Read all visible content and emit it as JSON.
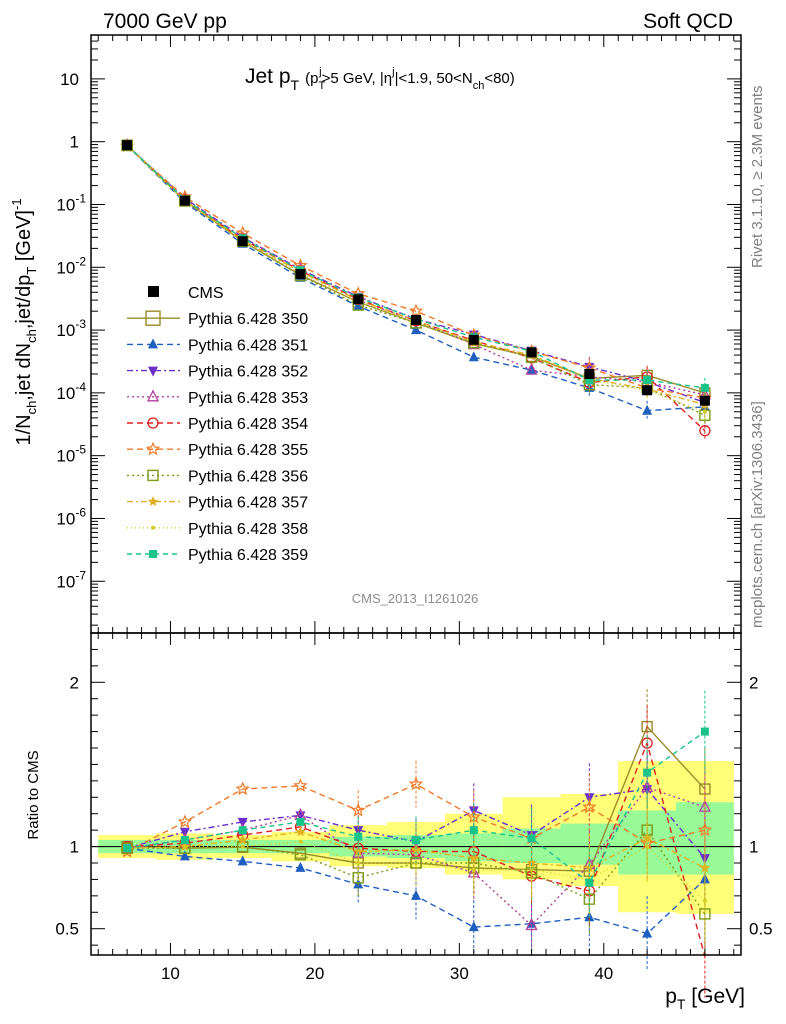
{
  "header": {
    "left": "7000 GeV pp",
    "right": "Soft QCD"
  },
  "side": {
    "rivet": "Rivet 3.1.10, ≥ 2.3M events",
    "mcplots": "mcplots.cern.ch [arXiv:1306.3436]"
  },
  "title": {
    "main": "Jet p",
    "main_sub": "T",
    "sel_a": "(p",
    "sel_a_sub": "T",
    "sel_a_sup": "j",
    "sel_b": ">5 GeV, |η",
    "sel_b_sup": "j",
    "sel_c": "|<1.9, 50<N",
    "sel_c_sub": "ch",
    "sel_d": "<80)"
  },
  "analysis_id": "CMS_2013_I1261026",
  "colors": {
    "data": "#000000",
    "band_inner": "#98fb98",
    "band_outer": "#ffff78"
  },
  "legend": {
    "data_label": "CMS",
    "mc": [
      "Pythia 6.428 350",
      "Pythia 6.428 351",
      "Pythia 6.428 352",
      "Pythia 6.428 353",
      "Pythia 6.428 354",
      "Pythia 6.428 355",
      "Pythia 6.428 356",
      "Pythia 6.428 357",
      "Pythia 6.428 358",
      "Pythia 6.428 359"
    ]
  },
  "chart_data": [
    {
      "type": "scatter",
      "panel": "main",
      "yscale": "log",
      "ylabel": "1/N_ch,jet dN_ch,jet/dp_T [GeV]^-1",
      "xlim": [
        4.5,
        49.5
      ],
      "ylim": [
        1.5e-08,
        50
      ],
      "y_tick_labels": [
        "10^-7",
        "10^-6",
        "10^-5",
        "10^-4",
        "10^-3",
        "10^-2",
        "10^-1",
        "1",
        "10"
      ],
      "x": [
        7,
        11,
        15,
        19,
        23,
        27,
        31,
        35,
        39,
        43,
        47
      ],
      "data": {
        "name": "CMS",
        "values": [
          0.88,
          0.115,
          0.026,
          0.0078,
          0.0031,
          0.00145,
          0.0007,
          0.00044,
          0.0002,
          0.00011,
          7.5e-05
        ]
      },
      "series": [
        {
          "name": "Pythia 6.428 350",
          "color": "#9a8b2a",
          "dash": "none",
          "marker": "square-open",
          "values": [
            0.88,
            0.114,
            0.0259,
            0.0075,
            0.0028,
            0.0013,
            0.00061,
            0.00038,
            0.00017,
            0.00019,
            0.0001
          ]
        },
        {
          "name": "Pythia 6.428 351",
          "color": "#1f5fbf",
          "dash": "6,4",
          "marker": "triangle-up",
          "values": [
            0.87,
            0.108,
            0.0237,
            0.0068,
            0.0024,
            0.001,
            0.00037,
            0.00023,
            0.00012,
            5.2e-05,
            6e-05
          ]
        },
        {
          "name": "Pythia 6.428 352",
          "color": "#6a2ec9",
          "dash": "6,3,2,3",
          "marker": "triangle-down",
          "values": [
            0.87,
            0.125,
            0.03,
            0.0093,
            0.0034,
            0.0015,
            0.00085,
            0.00047,
            0.00026,
            0.00015,
            7e-05
          ]
        },
        {
          "name": "Pythia 6.428 353",
          "color": "#b0409a",
          "dash": "2,3",
          "marker": "triangle-open",
          "values": [
            0.87,
            0.12,
            0.029,
            0.0093,
            0.003,
            0.0014,
            0.00059,
            0.00023,
            0.00018,
            0.00015,
            9.3e-05
          ]
        },
        {
          "name": "Pythia 6.428 354",
          "color": "#e02020",
          "dash": "6,4",
          "marker": "circle-open",
          "values": [
            0.88,
            0.117,
            0.028,
            0.0088,
            0.0031,
            0.0014,
            0.00068,
            0.00036,
            0.000146,
            0.00018,
            2.5e-05
          ]
        },
        {
          "name": "Pythia 6.428 355",
          "color": "#f07a28",
          "dash": "6,4",
          "marker": "star-open",
          "values": [
            0.85,
            0.132,
            0.035,
            0.0106,
            0.0038,
            0.002,
            0.00083,
            0.00046,
            0.00025,
            0.00012,
            8.3e-05
          ]
        },
        {
          "name": "Pythia 6.428 356",
          "color": "#7a9a18",
          "dash": "2,3",
          "marker": "square-open",
          "values": [
            0.87,
            0.114,
            0.026,
            0.0074,
            0.0025,
            0.0013,
            0.00063,
            0.00037,
            0.000135,
            0.00012,
            4.4e-05
          ]
        },
        {
          "name": "Pythia 6.428 357",
          "color": "#e0b020",
          "dash": "6,3,2,3",
          "marker": "star-small",
          "values": [
            0.87,
            0.115,
            0.027,
            0.0085,
            0.003,
            0.0014,
            0.00065,
            0.0004,
            0.00017,
            0.000115,
            6.5e-05
          ]
        },
        {
          "name": "Pythia 6.428 358",
          "color": "#d2cc24",
          "dash": "1,3",
          "marker": "dot",
          "values": [
            0.87,
            0.115,
            0.026,
            0.008,
            0.0028,
            0.0013,
            0.0006,
            0.00038,
            0.00016,
            0.00011,
            5e-05
          ]
        },
        {
          "name": "Pythia 6.428 359",
          "color": "#18c48a",
          "dash": "5,4",
          "marker": "square-filled",
          "values": [
            0.87,
            0.12,
            0.029,
            0.009,
            0.0033,
            0.0015,
            0.00077,
            0.00046,
            0.00016,
            0.00016,
            0.00012
          ]
        }
      ]
    },
    {
      "type": "scatter",
      "panel": "ratio",
      "ylabel": "Ratio to CMS",
      "xlabel": "p_T [GeV]",
      "xlim": [
        4.5,
        49.5
      ],
      "ylim": [
        0.34,
        2.3
      ],
      "x_tick_labels": [
        "10",
        "20",
        "30",
        "40"
      ],
      "y_tick_labels": [
        "0.5",
        "1",
        "2"
      ],
      "reference_line": 1,
      "band_edges": [
        5,
        9,
        13,
        17,
        21,
        25,
        29,
        33,
        37,
        41,
        45,
        49
      ],
      "band_inner": [
        [
          0.96,
          1.04
        ],
        [
          0.96,
          1.04
        ],
        [
          0.96,
          1.04
        ],
        [
          0.96,
          1.04
        ],
        [
          0.94,
          1.06
        ],
        [
          0.93,
          1.07
        ],
        [
          0.91,
          1.08
        ],
        [
          0.9,
          1.11
        ],
        [
          0.89,
          1.14
        ],
        [
          0.83,
          1.22
        ],
        [
          0.83,
          1.27
        ]
      ],
      "band_outer": [
        [
          0.93,
          1.07
        ],
        [
          0.92,
          1.08
        ],
        [
          0.93,
          1.07
        ],
        [
          0.91,
          1.09
        ],
        [
          0.88,
          1.13
        ],
        [
          0.87,
          1.15
        ],
        [
          0.83,
          1.2
        ],
        [
          0.8,
          1.3
        ],
        [
          0.76,
          1.32
        ],
        [
          0.6,
          1.52
        ],
        [
          0.59,
          1.52
        ]
      ],
      "x": [
        7,
        11,
        15,
        19,
        23,
        27,
        31,
        35,
        39,
        43,
        47
      ],
      "series": [
        {
          "name": "Pythia 6.428 350",
          "values": [
            1.0,
            0.99,
            0.996,
            0.96,
            0.9,
            0.9,
            0.87,
            0.86,
            0.85,
            1.73,
            1.35
          ]
        },
        {
          "name": "Pythia 6.428 351",
          "values": [
            0.99,
            0.94,
            0.91,
            0.87,
            0.77,
            0.7,
            0.51,
            0.53,
            0.57,
            0.47,
            0.8
          ]
        },
        {
          "name": "Pythia 6.428 352",
          "values": [
            0.99,
            1.09,
            1.15,
            1.19,
            1.1,
            1.03,
            1.22,
            1.07,
            1.3,
            1.35,
            0.93
          ]
        },
        {
          "name": "Pythia 6.428 353",
          "values": [
            0.99,
            1.04,
            1.1,
            1.19,
            0.96,
            0.95,
            0.84,
            0.52,
            0.89,
            1.36,
            1.24
          ]
        },
        {
          "name": "Pythia 6.428 354",
          "values": [
            1.0,
            1.02,
            1.07,
            1.12,
            0.99,
            0.97,
            0.97,
            0.82,
            0.73,
            1.63,
            0.33
          ]
        },
        {
          "name": "Pythia 6.428 355",
          "values": [
            0.97,
            1.15,
            1.35,
            1.37,
            1.22,
            1.38,
            1.18,
            1.05,
            1.24,
            1.02,
            1.1
          ]
        },
        {
          "name": "Pythia 6.428 356",
          "values": [
            0.99,
            0.99,
            1.0,
            0.95,
            0.81,
            0.9,
            0.9,
            0.84,
            0.68,
            1.1,
            0.59
          ]
        },
        {
          "name": "Pythia 6.428 357",
          "values": [
            0.99,
            1.0,
            1.04,
            1.09,
            0.97,
            0.98,
            0.93,
            0.9,
            0.87,
            1.05,
            0.87
          ]
        },
        {
          "name": "Pythia 6.428 358",
          "values": [
            0.99,
            1.0,
            1.0,
            1.03,
            0.9,
            0.9,
            0.86,
            0.86,
            0.8,
            1.0,
            0.67
          ]
        },
        {
          "name": "Pythia 6.428 359",
          "values": [
            0.99,
            1.04,
            1.1,
            1.15,
            1.06,
            1.04,
            1.1,
            1.05,
            0.78,
            1.45,
            1.7
          ]
        }
      ]
    }
  ]
}
